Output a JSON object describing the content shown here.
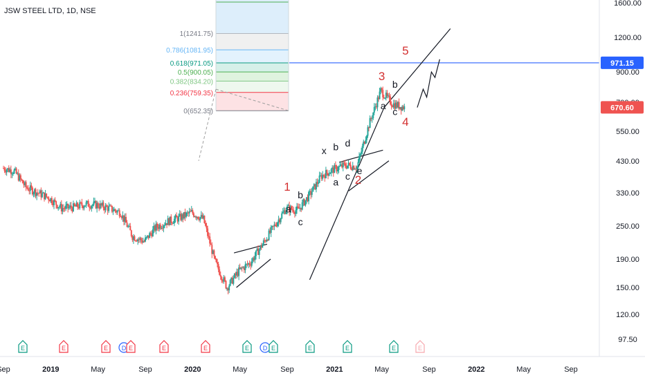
{
  "symbol": {
    "title": "JSW STEEL LTD, 1D, NSE"
  },
  "chart_data": {
    "type": "candlestick",
    "scale": "log",
    "ylim": [
      90,
      1700
    ],
    "y_ticks": [
      "1600.00",
      "1200.00",
      "900.00",
      "700.00",
      "550.00",
      "430.00",
      "330.00",
      "250.00",
      "190.00",
      "150.00",
      "120.00",
      "97.50"
    ],
    "x_ticks": [
      "Sep",
      "2019",
      "May",
      "Sep",
      "2020",
      "May",
      "Sep",
      "2021",
      "May",
      "Sep",
      "2022",
      "May",
      "Sep"
    ],
    "x_tick_dates": [
      "2018-09",
      "2019-01",
      "2019-05",
      "2019-09",
      "2020-01",
      "2020-05",
      "2020-09",
      "2021-01",
      "2021-05",
      "2021-09",
      "2022-01",
      "2022-05",
      "2022-09"
    ],
    "price_path": [
      [
        "2018-09",
        405
      ],
      [
        "2018-10",
        395
      ],
      [
        "2018-11",
        345
      ],
      [
        "2018-12",
        330
      ],
      [
        "2019-01",
        315
      ],
      [
        "2019-02",
        290
      ],
      [
        "2019-03",
        292
      ],
      [
        "2019-04",
        300
      ],
      [
        "2019-05",
        298
      ],
      [
        "2019-06",
        290
      ],
      [
        "2019-07",
        280
      ],
      [
        "2019-08",
        230
      ],
      [
        "2019-09",
        220
      ],
      [
        "2019-10",
        248
      ],
      [
        "2019-11",
        260
      ],
      [
        "2019-12",
        268
      ],
      [
        "2020-01",
        280
      ],
      [
        "2020-02",
        265
      ],
      [
        "2020-03",
        185
      ],
      [
        "2020-04",
        150
      ],
      [
        "2020-05",
        172
      ],
      [
        "2020-06",
        185
      ],
      [
        "2020-07",
        215
      ],
      [
        "2020-08",
        250
      ],
      [
        "2020-09",
        290
      ],
      [
        "2020-10",
        285
      ],
      [
        "2020-11",
        325
      ],
      [
        "2020-12",
        380
      ],
      [
        "2021-01",
        400
      ],
      [
        "2021-02",
        415
      ],
      [
        "2021-03",
        410
      ],
      [
        "2021-04",
        580
      ],
      [
        "2021-05",
        770
      ],
      [
        "2021-06",
        690
      ],
      [
        "2021-07",
        670.6
      ]
    ],
    "current_price": {
      "value": 670.6,
      "label": "670.60",
      "color": "#ef5350"
    },
    "target_line": {
      "value": 971.15,
      "label": "971.15",
      "color": "#2962ff"
    },
    "fibonacci": [
      {
        "level": 1,
        "price": 1241.75,
        "label": "1(1241.75)",
        "color": "#787b86",
        "fill": "#f0f0f0"
      },
      {
        "level": 0.786,
        "price": 1081.95,
        "label": "0.786(1081.95)",
        "color": "#64b5f6",
        "fill": "#e3f2fd"
      },
      {
        "level": 0.618,
        "price": 971.05,
        "label": "0.618(971.05)",
        "color": "#089981",
        "fill": "#d6f0e9"
      },
      {
        "level": 0.5,
        "price": 900.05,
        "label": "0.5(900.05)",
        "color": "#4caf50",
        "fill": "#dff3df"
      },
      {
        "level": 0.382,
        "price": 834.2,
        "label": "0.382(834.20)",
        "color": "#81c784",
        "fill": "#eef8ee"
      },
      {
        "level": 0.236,
        "price": 759.35,
        "label": "0.236(759.35)",
        "color": "#f23645",
        "fill": "#fde2e4"
      },
      {
        "level": 0,
        "price": 652.35,
        "label": "0(652.35)",
        "color": "#787b86",
        "fill": "#ffffff"
      }
    ],
    "wave_labels": [
      {
        "text": "1",
        "date": "2020-09",
        "price": 335,
        "color": "#d32f2f",
        "size": "big"
      },
      {
        "text": "a",
        "date": "2020-09",
        "price": 280,
        "color": "#131722",
        "size": "small"
      },
      {
        "text": "b",
        "date": "2020-10",
        "price": 315,
        "color": "#131722",
        "size": "small"
      },
      {
        "text": "c",
        "date": "2020-10",
        "price": 252,
        "color": "#131722",
        "size": "small"
      },
      {
        "text": "x",
        "date": "2020-12",
        "price": 455,
        "color": "#131722",
        "size": "small"
      },
      {
        "text": "b",
        "date": "2021-01",
        "price": 470,
        "color": "#131722",
        "size": "small"
      },
      {
        "text": "d",
        "date": "2021-02",
        "price": 485,
        "color": "#131722",
        "size": "small"
      },
      {
        "text": "a",
        "date": "2021-01",
        "price": 350,
        "color": "#131722",
        "size": "small"
      },
      {
        "text": "c",
        "date": "2021-02",
        "price": 368,
        "color": "#131722",
        "size": "small"
      },
      {
        "text": "e",
        "date": "2021-03",
        "price": 385,
        "color": "#131722",
        "size": "small"
      },
      {
        "text": "2",
        "date": "2021-03",
        "price": 355,
        "color": "#d32f2f",
        "size": "big"
      },
      {
        "text": "3",
        "date": "2021-05",
        "price": 840,
        "color": "#d32f2f",
        "size": "big"
      },
      {
        "text": "a",
        "date": "2021-05",
        "price": 660,
        "color": "#131722",
        "size": "small"
      },
      {
        "text": "b",
        "date": "2021-06",
        "price": 790,
        "color": "#131722",
        "size": "small"
      },
      {
        "text": "c",
        "date": "2021-06",
        "price": 630,
        "color": "#131722",
        "size": "small"
      },
      {
        "text": "4",
        "date": "2021-07",
        "price": 575,
        "color": "#d32f2f",
        "size": "big"
      },
      {
        "text": "5",
        "date": "2021-07",
        "price": 1040,
        "color": "#d32f2f",
        "size": "big"
      }
    ],
    "events": [
      {
        "type": "E",
        "color": "#089981"
      },
      {
        "type": "E",
        "color": "#f23645"
      },
      {
        "type": "E",
        "color": "#f23645"
      },
      {
        "type": "D",
        "color": "#2962ff"
      },
      {
        "type": "E",
        "color": "#f23645"
      },
      {
        "type": "E",
        "color": "#f23645"
      },
      {
        "type": "E",
        "color": "#f23645"
      },
      {
        "type": "E",
        "color": "#089981"
      },
      {
        "type": "D",
        "color": "#2962ff"
      },
      {
        "type": "E",
        "color": "#089981"
      },
      {
        "type": "E",
        "color": "#089981"
      },
      {
        "type": "E",
        "color": "#089981"
      },
      {
        "type": "E",
        "color": "#089981"
      },
      {
        "type": "E",
        "color": "#f7a8ae"
      }
    ],
    "colors": {
      "up": "#26a69a",
      "down": "#ef5350",
      "axis_text": "#131722",
      "grid": "none"
    }
  }
}
